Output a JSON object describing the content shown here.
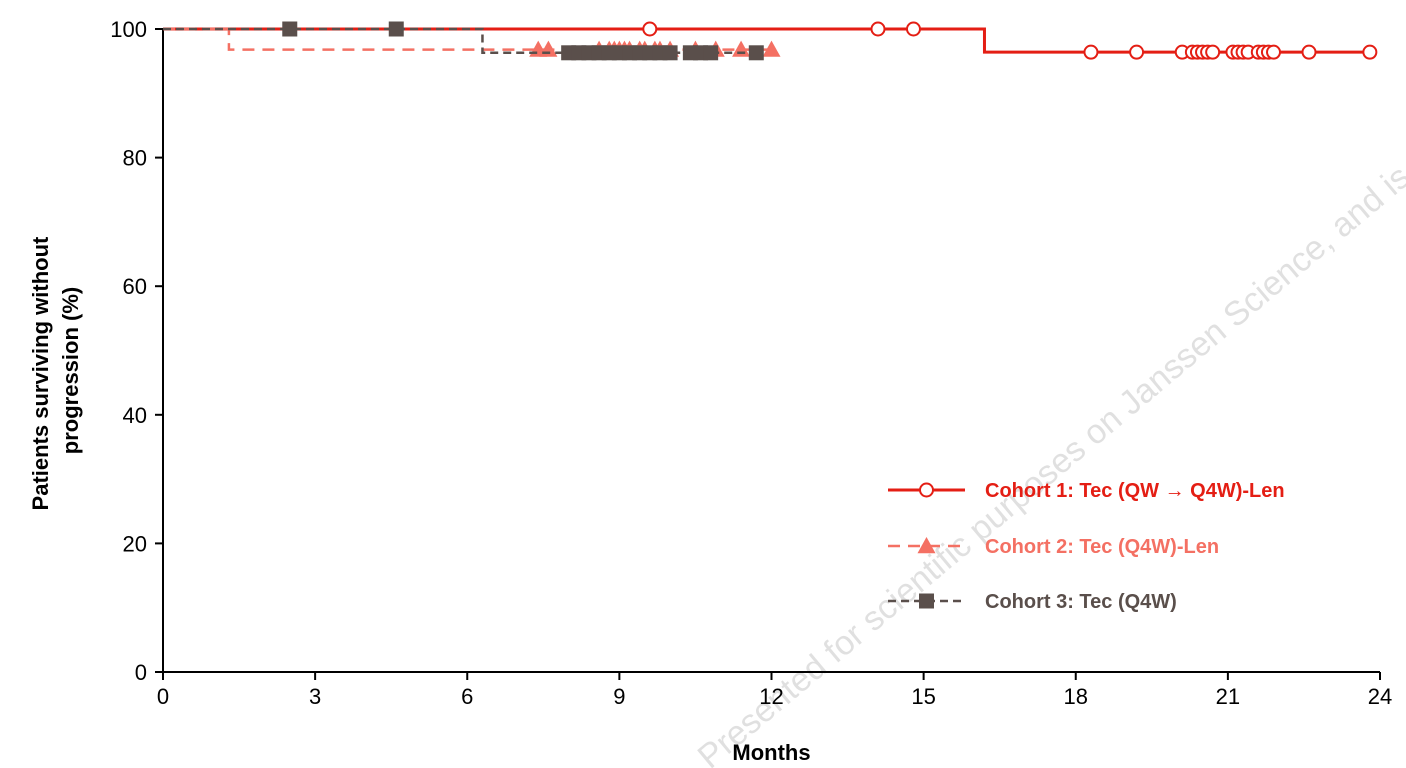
{
  "chart_data": {
    "type": "line",
    "xlabel": "Months",
    "ylabel": "Patients surviving without progression (%)",
    "ylabel_lines": [
      "Patients surviving without",
      "progression (%)"
    ],
    "xlim": [
      0,
      24
    ],
    "ylim": [
      0,
      100
    ],
    "xticks": [
      0,
      3,
      6,
      9,
      12,
      15,
      18,
      21,
      24
    ],
    "yticks": [
      0,
      20,
      40,
      60,
      80,
      100
    ],
    "grid": false,
    "legend_position": "lower-right",
    "series": [
      {
        "name": "Cohort 1: Tec (QW → Q4W)-Len",
        "color": "#e41e14",
        "line_style": "solid",
        "marker": "open-circle",
        "steps": [
          [
            0,
            100
          ],
          [
            16.2,
            100
          ],
          [
            16.2,
            96.4
          ],
          [
            23.8,
            96.4
          ]
        ],
        "censored": [
          [
            9.6,
            100
          ],
          [
            14.1,
            100
          ],
          [
            14.8,
            100
          ],
          [
            18.3,
            96.4
          ],
          [
            19.2,
            96.4
          ],
          [
            20.1,
            96.4
          ],
          [
            20.3,
            96.4
          ],
          [
            20.4,
            96.4
          ],
          [
            20.5,
            96.4
          ],
          [
            20.6,
            96.4
          ],
          [
            20.7,
            96.4
          ],
          [
            21.1,
            96.4
          ],
          [
            21.2,
            96.4
          ],
          [
            21.3,
            96.4
          ],
          [
            21.4,
            96.4
          ],
          [
            21.6,
            96.4
          ],
          [
            21.7,
            96.4
          ],
          [
            21.8,
            96.4
          ],
          [
            21.9,
            96.4
          ],
          [
            22.6,
            96.4
          ],
          [
            23.8,
            96.4
          ]
        ]
      },
      {
        "name": "Cohort 2: Tec (Q4W)-Len",
        "color": "#f47063",
        "line_style": "dashed",
        "marker": "filled-triangle",
        "steps": [
          [
            0,
            100
          ],
          [
            1.3,
            100
          ],
          [
            1.3,
            96.8
          ],
          [
            12.0,
            96.8
          ]
        ],
        "censored": [
          [
            7.4,
            96.8
          ],
          [
            7.6,
            96.8
          ],
          [
            8.6,
            96.8
          ],
          [
            8.8,
            96.8
          ],
          [
            8.9,
            96.8
          ],
          [
            9.0,
            96.8
          ],
          [
            9.1,
            96.8
          ],
          [
            9.2,
            96.8
          ],
          [
            9.4,
            96.8
          ],
          [
            9.5,
            96.8
          ],
          [
            9.7,
            96.8
          ],
          [
            9.8,
            96.8
          ],
          [
            10.0,
            96.8
          ],
          [
            10.5,
            96.8
          ],
          [
            10.9,
            96.8
          ],
          [
            11.4,
            96.8
          ],
          [
            12.0,
            96.8
          ]
        ]
      },
      {
        "name": "Cohort 3: Tec (Q4W)",
        "color": "#5a4f4b",
        "line_style": "dashed",
        "marker": "filled-square",
        "steps": [
          [
            0,
            100
          ],
          [
            6.3,
            100
          ],
          [
            6.3,
            96.3
          ],
          [
            11.7,
            96.3
          ]
        ],
        "censored": [
          [
            2.5,
            100
          ],
          [
            4.6,
            100
          ],
          [
            8.0,
            96.3
          ],
          [
            8.2,
            96.3
          ],
          [
            8.4,
            96.3
          ],
          [
            8.6,
            96.3
          ],
          [
            8.8,
            96.3
          ],
          [
            9.0,
            96.3
          ],
          [
            9.2,
            96.3
          ],
          [
            9.4,
            96.3
          ],
          [
            9.6,
            96.3
          ],
          [
            9.8,
            96.3
          ],
          [
            10.0,
            96.3
          ],
          [
            10.4,
            96.3
          ],
          [
            10.6,
            96.3
          ],
          [
            10.8,
            96.3
          ],
          [
            11.7,
            96.3
          ]
        ]
      }
    ]
  },
  "watermark_text": "Presented for scientific purposes on Janssen Science, and is not"
}
